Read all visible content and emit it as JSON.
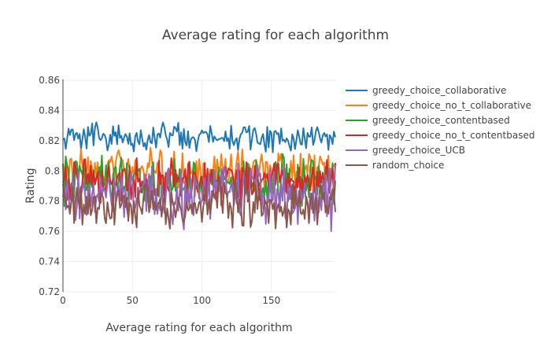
{
  "chart_data": {
    "type": "line",
    "title": "Average rating for each algorithm",
    "xlabel": "Average rating for each algorithm",
    "ylabel": "Rating",
    "xlim": [
      0,
      196
    ],
    "ylim": [
      0.72,
      0.86
    ],
    "xticks": [
      0,
      50,
      100,
      150
    ],
    "yticks": [
      0.72,
      0.74,
      0.76,
      0.78,
      0.8,
      0.82,
      0.84,
      0.86
    ],
    "xtick_labels": [
      "0",
      "50",
      "100",
      "150"
    ],
    "ytick_labels": [
      "0.72",
      "0.74",
      "0.76",
      "0.78",
      "0.8",
      "0.82",
      "0.84",
      "0.86"
    ],
    "grid": true,
    "legend_position": "right",
    "series": [
      {
        "name": "greedy_choice_collaborative",
        "color": "#1f77b4",
        "base": 0.822,
        "amp": 0.011,
        "seed": 11
      },
      {
        "name": "greedy_choice_no_t_collaborative",
        "color": "#ff7f0e",
        "base": 0.8,
        "amp": 0.018,
        "seed": 23
      },
      {
        "name": "greedy_choice_contentbased",
        "color": "#2ca02c",
        "base": 0.793,
        "amp": 0.019,
        "seed": 37
      },
      {
        "name": "greedy_choice_no_t_contentbased",
        "color": "#d62728",
        "base": 0.793,
        "amp": 0.017,
        "seed": 41
      },
      {
        "name": "greedy_choice_UCB",
        "color": "#9467bd",
        "base": 0.783,
        "amp": 0.026,
        "seed": 53
      },
      {
        "name": "random_choice",
        "color": "#8c564b",
        "base": 0.778,
        "amp": 0.019,
        "seed": 67
      }
    ]
  }
}
